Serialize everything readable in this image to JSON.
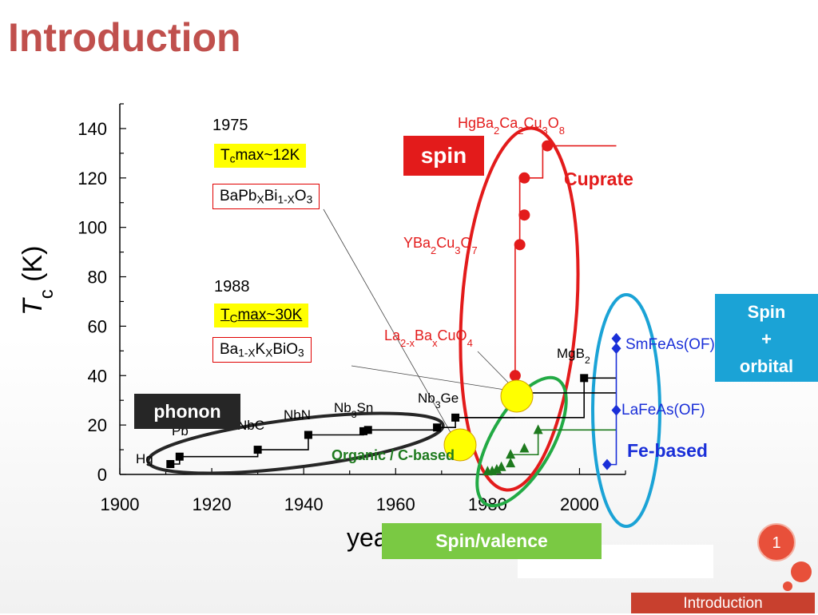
{
  "slide": {
    "title": "Introduction",
    "page_number": "1",
    "footer": "Introduction"
  },
  "chart_data": {
    "type": "scatter",
    "xlabel": "year",
    "ylabel": "Tc (K)",
    "xlim": [
      1900,
      2010
    ],
    "ylim": [
      0,
      150
    ],
    "x_ticks": [
      1900,
      1920,
      1940,
      1960,
      1980,
      2000
    ],
    "y_ticks": [
      0,
      20,
      40,
      60,
      80,
      100,
      120,
      140
    ],
    "grid": false,
    "series": [
      {
        "name": "",
        "color": "#000000",
        "marker": "square",
        "x": [
          1911,
          1913,
          1930,
          1941,
          1953,
          1954,
          1969,
          1973,
          2001
        ],
        "y": [
          4.2,
          7.2,
          10,
          16,
          17.5,
          18,
          19,
          23,
          39
        ],
        "point_labels": [
          "Hg",
          "Pb",
          "NbC",
          "NbN",
          "Nb3Sn",
          "",
          "",
          "Nb3Ge",
          "MgB2"
        ]
      },
      {
        "name": "Cuprate",
        "color": "#e31b1b",
        "marker": "circle",
        "x": [
          1986,
          1987,
          1988,
          1988,
          1993
        ],
        "y": [
          40,
          93,
          105,
          120,
          133
        ],
        "point_labels": [
          "La2-xBaxCuO4",
          "YBa2Cu3O7",
          "",
          "",
          "HgBa2Ca2Cu3O8"
        ]
      },
      {
        "name": "Organic / C-based",
        "color": "#1e7a1e",
        "marker": "triangle",
        "x": [
          1980,
          1981,
          1982,
          1983,
          1985,
          1985,
          1988,
          1991
        ],
        "y": [
          1.2,
          1.3,
          2.0,
          3.0,
          4.5,
          8,
          10.5,
          18
        ],
        "point_labels": []
      },
      {
        "name": "Fe-based",
        "color": "#1a2fd8",
        "marker": "diamond",
        "x": [
          2006,
          2008,
          2008,
          2008
        ],
        "y": [
          4,
          26,
          51,
          55
        ],
        "point_labels": [
          "",
          "LaFeAs(OF)",
          "",
          "SmFeAs(OF)"
        ]
      }
    ],
    "annotations": {
      "year_1975": "1975",
      "year_1988": "1988",
      "tcmax_12": "Tcmax~12K",
      "tcmax_30": "TCmax~30K",
      "formula_1975": "BaPbXBi1-XO3",
      "formula_1988": "Ba1-XKXBiO3",
      "cuprate_label": "Cuprate",
      "organic_label": "Organic / C-based",
      "fe_label": "Fe-based"
    }
  },
  "tags": {
    "spin": "spin",
    "spin_orbital": [
      "Spin",
      "+",
      "orbital"
    ],
    "phonon": "phonon",
    "spin_valence": "Spin/valence"
  },
  "colors": {
    "title": "#c0504d",
    "spin_tag": "#e31b1b",
    "spin_orbital_tag": "#1ba3d6",
    "phonon_tag": "#262626",
    "spin_valence_tag": "#7ac943",
    "highlight_yellow": "#ffff00"
  }
}
